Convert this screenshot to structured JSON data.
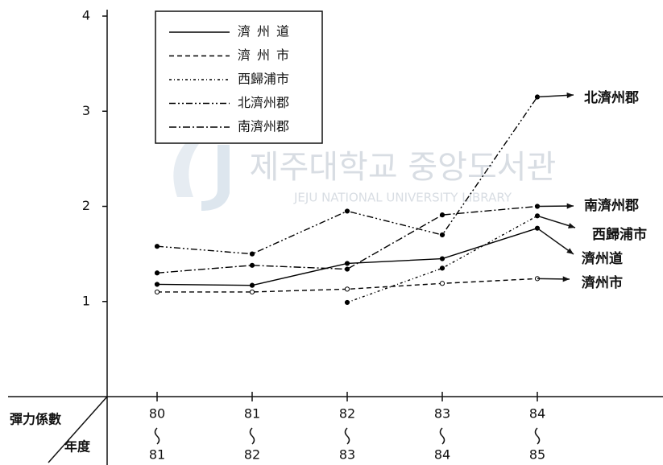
{
  "chart_data": {
    "type": "line",
    "watermark": {
      "korean": "제주대학교 중앙도서관",
      "english": "JEJU NATIONAL UNIVERSITY LIBRARY"
    },
    "y_label": "彈力係數",
    "x_label": "年度",
    "categories": [
      [
        "80",
        "81"
      ],
      [
        "81",
        "82"
      ],
      [
        "82",
        "83"
      ],
      [
        "83",
        "84"
      ],
      [
        "84",
        "85"
      ]
    ],
    "ylim": [
      0,
      4
    ],
    "yticks": [
      1,
      2,
      3,
      4
    ],
    "series": [
      {
        "name": "濟州道",
        "color": "#000000",
        "dash": "solid",
        "values": [
          1.18,
          1.17,
          1.4,
          1.45,
          1.77
        ]
      },
      {
        "name": "濟州市",
        "color": "#000000",
        "dash": "dashed",
        "values": [
          1.1,
          1.1,
          1.13,
          1.19,
          1.24
        ]
      },
      {
        "name": "西歸浦市",
        "color": "#000000",
        "dash": "dotted",
        "values": [
          null,
          null,
          0.99,
          1.35,
          1.9
        ]
      },
      {
        "name": "北濟州郡",
        "color": "#000000",
        "dash": "dash-dot-dot",
        "values": [
          1.58,
          1.5,
          1.95,
          1.7,
          3.15
        ]
      },
      {
        "name": "南濟州郡",
        "color": "#000000",
        "dash": "dash-dot",
        "values": [
          1.3,
          1.38,
          1.34,
          1.91,
          2.0
        ]
      }
    ]
  }
}
